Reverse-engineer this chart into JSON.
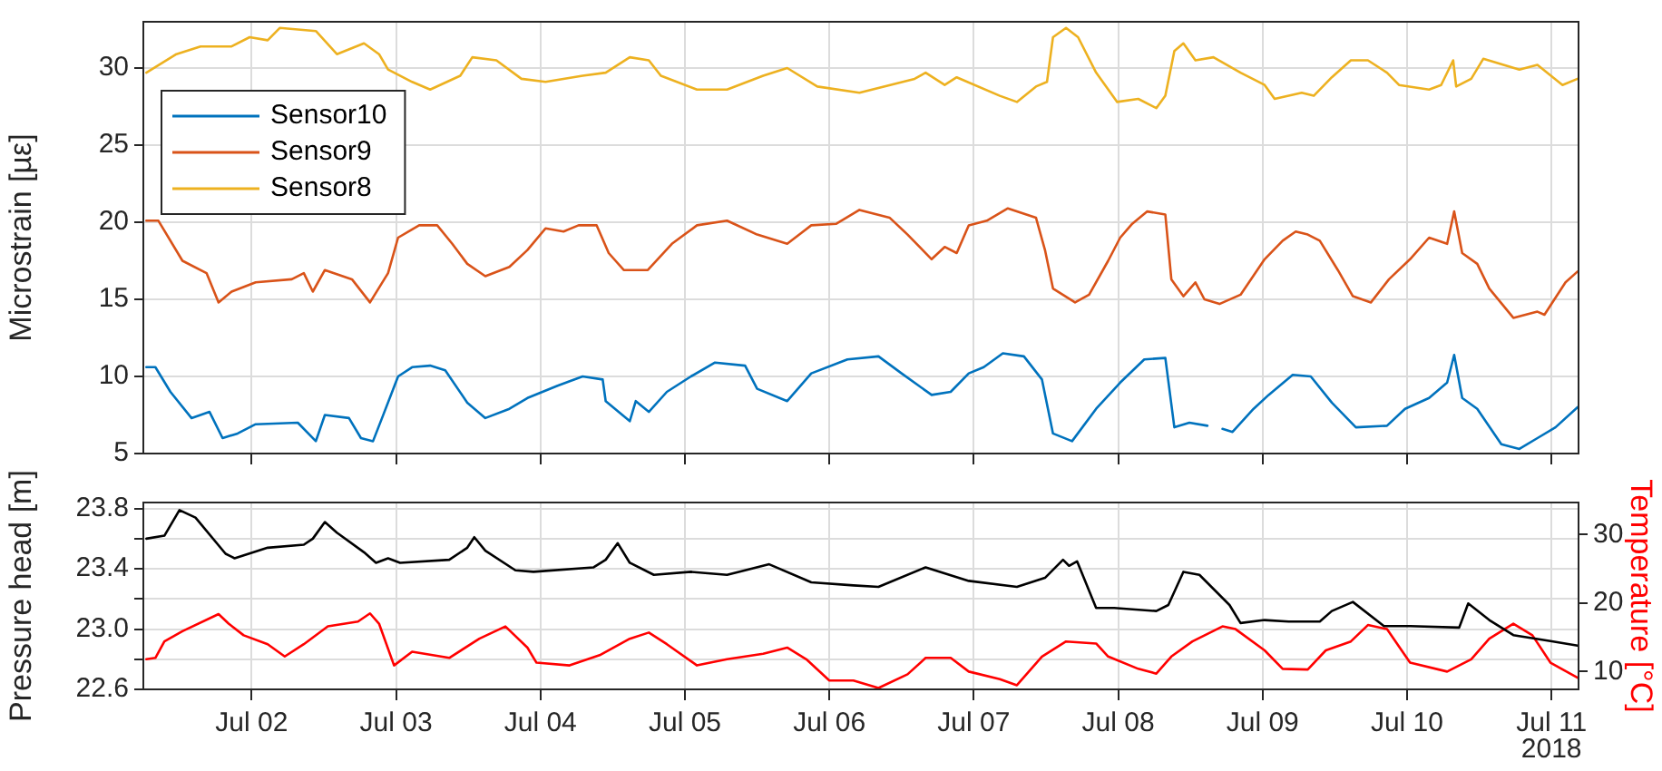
{
  "chart_data": [
    {
      "type": "line",
      "ylabel": "Microstrain [µε]",
      "xlim": [
        "2018-07-01T06:00",
        "2018-07-11T04:30"
      ],
      "xticks": [
        {
          "value": "2018-07-02",
          "label": null
        },
        {
          "value": "2018-07-03",
          "label": null
        },
        {
          "value": "2018-07-04",
          "label": null
        },
        {
          "value": "2018-07-05",
          "label": null
        },
        {
          "value": "2018-07-06",
          "label": null
        },
        {
          "value": "2018-07-07",
          "label": null
        },
        {
          "value": "2018-07-08",
          "label": null
        },
        {
          "value": "2018-07-09",
          "label": null
        },
        {
          "value": "2018-07-10",
          "label": null
        },
        {
          "value": "2018-07-11",
          "label": null
        }
      ],
      "ylim": [
        5,
        33
      ],
      "yticks": [
        5,
        10,
        15,
        20,
        25,
        30
      ],
      "tick_labels": "y",
      "grid": true,
      "legend": "top left",
      "marker": "none",
      "line_style": "solid",
      "series": [
        {
          "name": "Sensor10",
          "color": "#0072bd",
          "x": [
            "2018-07-01T06:30",
            "2018-07-01T08:00",
            "2018-07-01T10:30",
            "2018-07-01T14:00",
            "2018-07-01T17:00",
            "2018-07-01T19:10",
            "2018-07-01T21:40",
            "2018-07-02T00:40",
            "2018-07-02T07:40",
            "2018-07-02T10:40",
            "2018-07-02T12:10",
            "2018-07-02T16:10",
            "2018-07-02T18:10",
            "2018-07-02T20:10",
            "2018-07-02T21:40",
            "2018-07-03T00:20",
            "2018-07-03T02:40",
            "2018-07-03T05:40",
            "2018-07-03T08:10",
            "2018-07-03T11:50",
            "2018-07-03T14:50",
            "2018-07-03T18:50",
            "2018-07-03T21:50",
            "2018-07-04T02:50",
            "2018-07-04T07:00",
            "2018-07-04T10:20",
            "2018-07-04T10:50",
            "2018-07-04T14:50",
            "2018-07-04T15:50",
            "2018-07-04T18:00",
            "2018-07-04T21:00",
            "2018-07-05T01:00",
            "2018-07-05T05:00",
            "2018-07-05T10:00",
            "2018-07-05T12:00",
            "2018-07-05T17:00",
            "2018-07-05T21:00",
            "2018-07-06T03:00",
            "2018-07-06T08:10",
            "2018-07-06T12:00",
            "2018-07-06T17:00",
            "2018-07-06T20:10",
            "2018-07-06T23:10",
            "2018-07-07T01:40",
            "2018-07-07T04:50",
            "2018-07-07T08:20",
            "2018-07-07T11:20",
            "2018-07-07T13:10",
            "2018-07-07T16:20",
            "2018-07-07T20:20",
            "2018-07-08T00:20",
            "2018-07-08T04:20",
            "2018-07-08T07:50",
            "2018-07-08T09:20",
            "2018-07-08T11:50",
            "2018-07-08T14:50",
            "2018-07-08T16:00",
            "2018-07-08T17:20",
            "2018-07-08T19:00",
            "2018-07-08T22:30",
            "2018-07-09T01:00",
            "2018-07-09T05:00",
            "2018-07-09T08:00",
            "2018-07-09T11:30",
            "2018-07-09T15:30",
            "2018-07-09T20:40",
            "2018-07-09T23:40",
            "2018-07-10T03:40",
            "2018-07-10T06:40",
            "2018-07-10T07:50",
            "2018-07-10T09:10",
            "2018-07-10T11:40",
            "2018-07-10T15:40",
            "2018-07-10T18:40",
            "2018-07-10T21:40",
            "2018-07-11T00:40",
            "2018-07-11T04:20"
          ],
          "values": [
            10.6,
            10.6,
            9.0,
            7.3,
            7.7,
            6.0,
            6.3,
            6.9,
            7.0,
            5.8,
            7.5,
            7.3,
            6.0,
            5.8,
            7.3,
            10.0,
            10.6,
            10.7,
            10.4,
            8.3,
            7.3,
            7.9,
            8.6,
            9.4,
            10.0,
            9.8,
            8.4,
            7.1,
            8.4,
            7.7,
            9.0,
            10.0,
            10.9,
            10.7,
            9.2,
            8.4,
            10.2,
            11.1,
            11.3,
            10.2,
            8.8,
            9.0,
            10.2,
            10.6,
            11.5,
            11.3,
            9.8,
            6.3,
            5.8,
            7.9,
            9.6,
            11.1,
            11.2,
            6.7,
            7.0,
            6.8,
            null,
            6.6,
            6.4,
            7.9,
            8.8,
            10.1,
            10.0,
            8.3,
            6.7,
            6.8,
            7.9,
            8.6,
            9.6,
            11.4,
            8.6,
            7.9,
            5.6,
            5.3,
            6.0,
            6.7,
            8.0
          ]
        },
        {
          "name": "Sensor9",
          "color": "#d95319",
          "x": [
            "2018-07-01T06:30",
            "2018-07-01T08:30",
            "2018-07-01T12:30",
            "2018-07-01T16:30",
            "2018-07-01T18:30",
            "2018-07-01T20:40",
            "2018-07-02T00:40",
            "2018-07-02T06:40",
            "2018-07-02T08:40",
            "2018-07-02T10:10",
            "2018-07-02T12:10",
            "2018-07-02T16:40",
            "2018-07-02T19:40",
            "2018-07-02T22:40",
            "2018-07-03T00:20",
            "2018-07-03T03:50",
            "2018-07-03T06:50",
            "2018-07-03T09:20",
            "2018-07-03T11:50",
            "2018-07-03T14:50",
            "2018-07-03T18:50",
            "2018-07-03T21:50",
            "2018-07-04T00:50",
            "2018-07-04T03:50",
            "2018-07-04T06:20",
            "2018-07-04T09:20",
            "2018-07-04T11:20",
            "2018-07-04T13:50",
            "2018-07-04T17:50",
            "2018-07-04T21:50",
            "2018-07-05T02:00",
            "2018-07-05T07:00",
            "2018-07-05T12:00",
            "2018-07-05T17:00",
            "2018-07-05T21:00",
            "2018-07-06T01:10",
            "2018-07-06T05:00",
            "2018-07-06T10:00",
            "2018-07-06T13:00",
            "2018-07-06T17:00",
            "2018-07-06T19:10",
            "2018-07-06T21:10",
            "2018-07-06T23:10",
            "2018-07-07T02:10",
            "2018-07-07T05:40",
            "2018-07-07T10:20",
            "2018-07-07T11:50",
            "2018-07-07T13:10",
            "2018-07-07T16:50",
            "2018-07-07T19:10",
            "2018-07-07T22:20",
            "2018-07-08T00:20",
            "2018-07-08T02:20",
            "2018-07-08T04:50",
            "2018-07-08T07:50",
            "2018-07-08T08:50",
            "2018-07-08T10:50",
            "2018-07-08T12:50",
            "2018-07-08T14:20",
            "2018-07-08T16:50",
            "2018-07-08T20:20",
            "2018-07-09T00:20",
            "2018-07-09T03:20",
            "2018-07-09T05:30",
            "2018-07-09T07:30",
            "2018-07-09T09:30",
            "2018-07-09T12:30",
            "2018-07-09T15:00",
            "2018-07-09T18:00",
            "2018-07-09T21:00",
            "2018-07-10T00:30",
            "2018-07-10T03:40",
            "2018-07-10T06:40",
            "2018-07-10T07:50",
            "2018-07-10T09:10",
            "2018-07-10T11:40",
            "2018-07-10T13:40",
            "2018-07-10T17:40",
            "2018-07-10T21:40",
            "2018-07-10T22:50",
            "2018-07-11T02:20",
            "2018-07-11T04:20"
          ],
          "values": [
            20.1,
            20.1,
            17.5,
            16.7,
            14.8,
            15.5,
            16.1,
            16.3,
            16.7,
            15.5,
            16.9,
            16.3,
            14.8,
            16.7,
            19.0,
            19.8,
            19.8,
            18.6,
            17.3,
            16.5,
            17.1,
            18.2,
            19.6,
            19.4,
            19.8,
            19.8,
            18.0,
            16.9,
            16.9,
            18.6,
            19.8,
            20.1,
            19.2,
            18.6,
            19.8,
            19.9,
            20.8,
            20.3,
            19.2,
            17.6,
            18.4,
            18.0,
            19.8,
            20.1,
            20.9,
            20.3,
            18.2,
            15.7,
            14.8,
            15.3,
            17.5,
            19.0,
            19.9,
            20.7,
            20.5,
            16.3,
            15.2,
            16.1,
            15.0,
            14.7,
            15.3,
            17.6,
            18.8,
            19.4,
            19.2,
            18.8,
            16.9,
            15.2,
            14.8,
            16.3,
            17.6,
            19.0,
            18.6,
            20.7,
            18.0,
            17.3,
            15.7,
            13.8,
            14.2,
            14.0,
            16.1,
            16.8
          ]
        },
        {
          "name": "Sensor8",
          "color": "#edb120",
          "x": [
            "2018-07-01T06:30",
            "2018-07-01T11:30",
            "2018-07-01T15:30",
            "2018-07-01T20:40",
            "2018-07-01T23:40",
            "2018-07-02T02:40",
            "2018-07-02T04:40",
            "2018-07-02T10:40",
            "2018-07-02T14:10",
            "2018-07-02T18:40",
            "2018-07-02T21:10",
            "2018-07-02T22:40",
            "2018-07-03T02:40",
            "2018-07-03T05:40",
            "2018-07-03T10:40",
            "2018-07-03T12:40",
            "2018-07-03T16:40",
            "2018-07-03T20:50",
            "2018-07-04T00:50",
            "2018-07-04T07:00",
            "2018-07-04T10:50",
            "2018-07-04T14:50",
            "2018-07-04T18:00",
            "2018-07-04T20:00",
            "2018-07-05T02:00",
            "2018-07-05T07:00",
            "2018-07-05T13:00",
            "2018-07-05T17:00",
            "2018-07-05T22:00",
            "2018-07-06T05:00",
            "2018-07-06T14:10",
            "2018-07-06T16:00",
            "2018-07-06T19:10",
            "2018-07-06T21:10",
            "2018-07-07T04:20",
            "2018-07-07T07:10",
            "2018-07-07T10:20",
            "2018-07-07T12:10",
            "2018-07-07T13:10",
            "2018-07-07T15:20",
            "2018-07-07T17:20",
            "2018-07-07T20:20",
            "2018-07-07T23:50",
            "2018-07-08T03:20",
            "2018-07-08T06:20",
            "2018-07-08T07:50",
            "2018-07-08T09:20",
            "2018-07-08T10:50",
            "2018-07-08T12:50",
            "2018-07-08T15:50",
            "2018-07-08T20:20",
            "2018-07-09T00:20",
            "2018-07-09T02:00",
            "2018-07-09T06:30",
            "2018-07-09T08:30",
            "2018-07-09T11:30",
            "2018-07-09T14:40",
            "2018-07-09T17:30",
            "2018-07-09T20:40",
            "2018-07-09T22:40",
            "2018-07-10T03:40",
            "2018-07-10T05:40",
            "2018-07-10T07:40",
            "2018-07-10T08:10",
            "2018-07-10T10:40",
            "2018-07-10T12:40",
            "2018-07-10T18:40",
            "2018-07-10T21:40",
            "2018-07-11T01:50",
            "2018-07-11T04:20"
          ],
          "values": [
            29.7,
            30.9,
            31.4,
            31.4,
            32.0,
            31.8,
            32.6,
            32.4,
            30.9,
            31.6,
            30.9,
            29.9,
            29.1,
            28.6,
            29.5,
            30.7,
            30.5,
            29.3,
            29.1,
            29.5,
            29.7,
            30.7,
            30.5,
            29.5,
            28.6,
            28.6,
            29.5,
            30.0,
            28.8,
            28.4,
            29.3,
            29.7,
            28.9,
            29.4,
            28.2,
            27.8,
            28.8,
            29.1,
            32.0,
            32.6,
            32.0,
            29.7,
            27.8,
            28.0,
            27.4,
            28.2,
            31.1,
            31.6,
            30.5,
            30.7,
            29.7,
            28.9,
            28.0,
            28.4,
            28.2,
            29.4,
            30.5,
            30.5,
            29.7,
            28.9,
            28.6,
            28.9,
            30.5,
            28.8,
            29.3,
            30.6,
            29.9,
            30.2,
            28.9,
            29.3
          ]
        }
      ]
    },
    {
      "type": "line",
      "ylabel": "Pressure head [m]",
      "y2label": "Temperature [°C]",
      "xlim": [
        "2018-07-01T06:00",
        "2018-07-11T04:30"
      ],
      "xticks": [
        {
          "value": "2018-07-02",
          "label": "Jul 02"
        },
        {
          "value": "2018-07-03",
          "label": "Jul 03"
        },
        {
          "value": "2018-07-04",
          "label": "Jul 04"
        },
        {
          "value": "2018-07-05",
          "label": "Jul 05"
        },
        {
          "value": "2018-07-06",
          "label": "Jul 06"
        },
        {
          "value": "2018-07-07",
          "label": "Jul 07"
        },
        {
          "value": "2018-07-08",
          "label": "Jul 08"
        },
        {
          "value": "2018-07-09",
          "label": "Jul 09"
        },
        {
          "value": "2018-07-10",
          "label": "Jul 10"
        },
        {
          "value": "2018-07-11",
          "label": "Jul 11"
        }
      ],
      "ylim": [
        22.6,
        23.84
      ],
      "yticks": [
        22.6,
        {
          "value": 22.8,
          "label": null
        },
        {
          "value": 23,
          "label": "23.0"
        },
        {
          "value": 23.2,
          "label": null
        },
        23.4,
        {
          "value": 23.6,
          "label": null
        },
        23.8
      ],
      "y2lim": [
        7.4,
        34.7
      ],
      "y2ticks": [
        10,
        20,
        30
      ],
      "grid": true,
      "marker": "none",
      "line_style": "solid",
      "annotations": [
        "2018"
      ],
      "series": [
        {
          "color": "#000000",
          "x": [
            "2018-07-01T06:30",
            "2018-07-01T09:30",
            "2018-07-01T12:00",
            "2018-07-01T14:40",
            "2018-07-01T19:40",
            "2018-07-01T21:10",
            "2018-07-02T02:40",
            "2018-07-02T08:40",
            "2018-07-02T10:10",
            "2018-07-02T12:10",
            "2018-07-02T14:10",
            "2018-07-02T18:40",
            "2018-07-02T20:40",
            "2018-07-02T22:40",
            "2018-07-03T00:40",
            "2018-07-03T08:50",
            "2018-07-03T11:50",
            "2018-07-03T13:00",
            "2018-07-03T14:50",
            "2018-07-03T19:50",
            "2018-07-03T22:50",
            "2018-07-04T08:50",
            "2018-07-04T10:50",
            "2018-07-04T12:50",
            "2018-07-04T14:50",
            "2018-07-04T18:50",
            "2018-07-05T01:00",
            "2018-07-05T07:00",
            "2018-07-05T10:00",
            "2018-07-05T14:00",
            "2018-07-05T21:00",
            "2018-07-06T04:00",
            "2018-07-06T08:10",
            "2018-07-06T16:00",
            "2018-07-06T23:10",
            "2018-07-07T07:10",
            "2018-07-07T11:50",
            "2018-07-07T14:50",
            "2018-07-07T15:50",
            "2018-07-07T17:10",
            "2018-07-07T20:20",
            "2018-07-07T23:20",
            "2018-07-08T06:20",
            "2018-07-08T08:20",
            "2018-07-08T10:50",
            "2018-07-08T13:30",
            "2018-07-08T18:30",
            "2018-07-08T20:20",
            "2018-07-09T00:20",
            "2018-07-09T04:20",
            "2018-07-09T09:30",
            "2018-07-09T11:30",
            "2018-07-09T15:00",
            "2018-07-09T20:10",
            "2018-07-10T00:30",
            "2018-07-10T08:40",
            "2018-07-10T10:10",
            "2018-07-10T13:40",
            "2018-07-10T17:40",
            "2018-07-10T23:50",
            "2018-07-11T04:20"
          ],
          "values": [
            23.6,
            23.62,
            23.79,
            23.74,
            23.5,
            23.47,
            23.54,
            23.56,
            23.6,
            23.71,
            23.64,
            23.51,
            23.44,
            23.47,
            23.44,
            23.46,
            23.54,
            23.61,
            23.52,
            23.39,
            23.38,
            23.41,
            23.46,
            23.57,
            23.44,
            23.36,
            23.38,
            23.36,
            23.39,
            23.43,
            23.31,
            23.29,
            23.28,
            23.41,
            23.32,
            23.28,
            23.34,
            23.46,
            23.42,
            23.45,
            23.14,
            23.14,
            23.12,
            23.16,
            23.38,
            23.36,
            23.16,
            23.04,
            23.06,
            23.05,
            23.05,
            23.12,
            23.18,
            23.02,
            23.02,
            23.01,
            23.17,
            23.06,
            22.96,
            22.92,
            22.89
          ]
        },
        {
          "color": "#ff0000",
          "axis": "y2",
          "x": [
            "2018-07-01T06:30",
            "2018-07-01T08:00",
            "2018-07-01T09:30",
            "2018-07-01T12:30",
            "2018-07-01T18:30",
            "2018-07-01T20:10",
            "2018-07-01T22:40",
            "2018-07-02T02:40",
            "2018-07-02T05:30",
            "2018-07-02T08:40",
            "2018-07-02T12:40",
            "2018-07-02T17:40",
            "2018-07-02T19:40",
            "2018-07-02T21:10",
            "2018-07-02T23:40",
            "2018-07-03T02:40",
            "2018-07-03T08:50",
            "2018-07-03T13:50",
            "2018-07-03T18:10",
            "2018-07-03T21:50",
            "2018-07-03T23:20",
            "2018-07-04T04:50",
            "2018-07-04T09:50",
            "2018-07-04T14:50",
            "2018-07-04T18:00",
            "2018-07-04T21:00",
            "2018-07-05T02:00",
            "2018-07-05T07:00",
            "2018-07-05T13:00",
            "2018-07-05T17:00",
            "2018-07-05T20:10",
            "2018-07-06T00:00",
            "2018-07-06T04:00",
            "2018-07-06T08:10",
            "2018-07-06T13:00",
            "2018-07-06T16:00",
            "2018-07-06T20:10",
            "2018-07-06T23:10",
            "2018-07-07T04:20",
            "2018-07-07T07:10",
            "2018-07-07T11:20",
            "2018-07-07T15:20",
            "2018-07-07T20:20",
            "2018-07-07T22:20",
            "2018-07-08T03:20",
            "2018-07-08T06:20",
            "2018-07-08T08:50",
            "2018-07-08T12:20",
            "2018-07-08T17:20",
            "2018-07-08T19:30",
            "2018-07-09T00:20",
            "2018-07-09T03:20",
            "2018-07-09T07:30",
            "2018-07-09T10:30",
            "2018-07-09T14:40",
            "2018-07-09T17:30",
            "2018-07-09T20:40",
            "2018-07-10T00:30",
            "2018-07-10T06:40",
            "2018-07-10T10:40",
            "2018-07-10T13:40",
            "2018-07-10T17:40",
            "2018-07-10T20:50",
            "2018-07-10T23:50",
            "2018-07-11T04:20"
          ],
          "values": [
            11.8,
            12.0,
            14.4,
            15.9,
            18.4,
            17.0,
            15.3,
            14.0,
            12.2,
            14.0,
            16.6,
            17.3,
            18.5,
            17.0,
            10.9,
            12.9,
            12.0,
            14.8,
            16.6,
            13.5,
            11.3,
            10.9,
            12.4,
            14.8,
            15.7,
            14.0,
            10.9,
            11.8,
            12.6,
            13.5,
            11.8,
            8.7,
            8.7,
            7.6,
            9.6,
            12.0,
            12.0,
            10.0,
            8.9,
            8.0,
            12.2,
            14.4,
            14.1,
            12.2,
            10.4,
            9.7,
            12.2,
            14.4,
            16.6,
            16.2,
            13.1,
            10.4,
            10.3,
            13.1,
            14.4,
            16.8,
            16.2,
            11.3,
            10.0,
            11.8,
            14.8,
            17.0,
            15.3,
            11.3,
            9.1
          ]
        }
      ]
    }
  ]
}
